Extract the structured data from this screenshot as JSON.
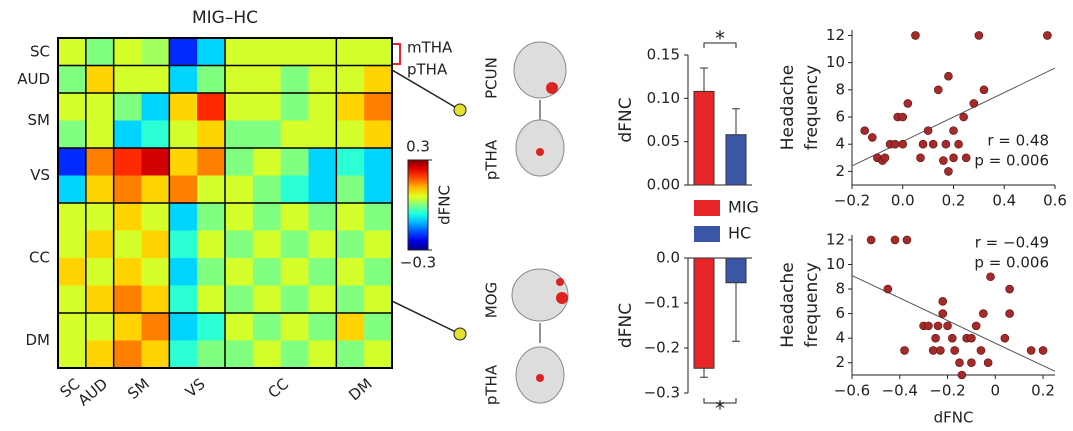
{
  "chart_data": [
    {
      "type": "heatmap",
      "title": "MIG–HC",
      "categories": [
        "SC",
        "AUD",
        "SM",
        null,
        "VS",
        null,
        "CC",
        null,
        null,
        null,
        "DM",
        null
      ],
      "values": [
        [
          0.05,
          0,
          0.05,
          0.02,
          -0.2,
          -0.1,
          0.05,
          0.05,
          0.05,
          0.05,
          0.05,
          0.05
        ],
        [
          0,
          0.1,
          0.05,
          0.05,
          -0.1,
          0,
          0.05,
          0.05,
          0,
          0.05,
          0.05,
          0.1
        ],
        [
          0.05,
          0.05,
          0,
          -0.1,
          0.1,
          0.2,
          0.05,
          0.05,
          0,
          0.05,
          0.1,
          0.15
        ],
        [
          0,
          0.05,
          -0.1,
          -0.05,
          0.05,
          0.1,
          0,
          0,
          0.05,
          0.05,
          0.05,
          0.1
        ],
        [
          -0.2,
          0.15,
          0.2,
          0.25,
          0.1,
          0.15,
          0,
          0.05,
          0,
          -0.1,
          -0.05,
          -0.1
        ],
        [
          -0.1,
          0.1,
          0.15,
          0.1,
          0.15,
          0.05,
          0.05,
          0,
          -0.05,
          -0.1,
          0,
          -0.1
        ],
        [
          0.05,
          0.05,
          0.1,
          0.05,
          -0.1,
          0,
          0.05,
          0,
          0.05,
          0,
          0.05,
          0
        ],
        [
          0.05,
          0.1,
          0.05,
          0.1,
          -0.05,
          0.05,
          0,
          0.05,
          0,
          0.05,
          0,
          0.05
        ],
        [
          0.1,
          0.05,
          0.1,
          0.05,
          -0.1,
          0,
          0.05,
          0,
          0.05,
          0,
          0.05,
          0
        ],
        [
          0.05,
          0.1,
          0.15,
          0.1,
          -0.05,
          0.05,
          0,
          0.05,
          0,
          0.05,
          0,
          0.05
        ],
        [
          0.05,
          0.05,
          0.1,
          0.15,
          -0.1,
          -0.05,
          0.05,
          0,
          0.05,
          0,
          0.1,
          0
        ],
        [
          0.05,
          0.1,
          0.15,
          0.1,
          -0.05,
          0,
          0,
          0.05,
          0,
          0.05,
          0,
          0.05
        ]
      ],
      "clim": [
        -0.3,
        0.3
      ],
      "cticks": [
        {
          "value": 0.3,
          "label": "0.3"
        },
        {
          "value": -0.3,
          "label": "−0.3"
        }
      ],
      "colorbar_label": "dFNC",
      "annotations": [
        "mTHA",
        "pTHA"
      ]
    },
    {
      "type": "bar",
      "ylabel": "dFNC",
      "significance": "*",
      "legend": true,
      "region_labels": [
        "PCUN",
        "pTHA"
      ],
      "series": [
        {
          "name": "MIG",
          "color": "#e8262a",
          "values": [
            0.108
          ],
          "errors": [
            0.027
          ]
        },
        {
          "name": "HC",
          "color": "#3b56a5",
          "values": [
            0.058
          ],
          "errors": [
            0.03
          ]
        }
      ],
      "ylim": [
        0,
        0.15
      ],
      "yticks": [
        {
          "value": 0,
          "label": "0.00"
        },
        {
          "value": 0.05,
          "label": "0.05"
        },
        {
          "value": 0.1,
          "label": "0.10"
        },
        {
          "value": 0.15,
          "label": "0.15"
        }
      ]
    },
    {
      "type": "bar",
      "ylabel": "dFNC",
      "significance": "*",
      "legend": false,
      "region_labels": [
        "MOG",
        "pTHA"
      ],
      "series": [
        {
          "color": "#e8262a",
          "values": [
            -0.245
          ],
          "errors": [
            0.02
          ]
        },
        {
          "color": "#3b56a5",
          "values": [
            -0.055
          ],
          "errors": [
            0.13
          ]
        }
      ],
      "ylim": [
        -0.3,
        0
      ],
      "yticks": [
        {
          "value": 0,
          "label": "0.0"
        },
        {
          "value": -0.1,
          "label": "−0.1"
        },
        {
          "value": -0.2,
          "label": "−0.2"
        },
        {
          "value": -0.3,
          "label": "−0.3"
        }
      ]
    },
    {
      "type": "scatter",
      "ylabel_lines": [
        "Headache",
        "frequency"
      ],
      "color": "#a52a2a",
      "x": [
        -0.15,
        -0.12,
        -0.1,
        -0.08,
        -0.07,
        -0.05,
        -0.03,
        -0.02,
        0,
        0,
        0.02,
        0.05,
        0.07,
        0.08,
        0.1,
        0.12,
        0.14,
        0.16,
        0.17,
        0.18,
        0.18,
        0.2,
        0.2,
        0.22,
        0.24,
        0.25,
        0.28,
        0.3,
        0.32,
        0.57
      ],
      "y": [
        5,
        4.5,
        3,
        2.8,
        3,
        4,
        4,
        6,
        6,
        4,
        7,
        12,
        3,
        4,
        5,
        4,
        8,
        2.8,
        4,
        9,
        2,
        3,
        5,
        4,
        6,
        3,
        7,
        12,
        8,
        12
      ],
      "fit": {
        "x": [
          -0.2,
          0.6
        ],
        "y": [
          2.4,
          9.6
        ]
      },
      "annotations": [
        "r = 0.48",
        "p = 0.006"
      ],
      "xlim": [
        -0.2,
        0.6
      ],
      "xticks": [
        {
          "value": -0.2,
          "label": "−0.2"
        },
        {
          "value": 0,
          "label": "0.0"
        },
        {
          "value": 0.2,
          "label": "0.2"
        },
        {
          "value": 0.4,
          "label": "0.4"
        },
        {
          "value": 0.6,
          "label": "0.6"
        }
      ],
      "ylim": [
        1,
        12.4
      ],
      "yticks": [
        2,
        4,
        6,
        8,
        10,
        12
      ]
    },
    {
      "type": "scatter",
      "ylabel_lines": [
        "Headache",
        "frequency"
      ],
      "xlabel": "dFNC",
      "color": "#a52a2a",
      "x": [
        -0.52,
        -0.45,
        -0.42,
        -0.38,
        -0.37,
        -0.3,
        -0.28,
        -0.26,
        -0.25,
        -0.24,
        -0.23,
        -0.22,
        -0.22,
        -0.2,
        -0.18,
        -0.17,
        -0.15,
        -0.14,
        -0.12,
        -0.1,
        -0.1,
        -0.08,
        -0.06,
        -0.05,
        -0.03,
        -0.02,
        0.04,
        0.06,
        0.06,
        0.15,
        0.2
      ],
      "y": [
        12,
        8,
        12,
        3,
        12,
        5,
        5,
        3,
        4,
        5,
        3,
        7,
        6,
        5,
        4,
        3,
        2,
        1,
        4,
        4,
        2,
        5,
        3,
        6,
        2,
        9,
        4,
        8,
        6,
        3,
        3
      ],
      "fit": {
        "x": [
          -0.6,
          0.25
        ],
        "y": [
          9.1,
          1.3
        ]
      },
      "annotations": [
        "r = −0.49",
        "p = 0.006"
      ],
      "xlim": [
        -0.6,
        0.25
      ],
      "xticks": [
        {
          "value": -0.6,
          "label": "−0.6"
        },
        {
          "value": -0.4,
          "label": "−0.4"
        },
        {
          "value": -0.2,
          "label": "−0.2"
        },
        0,
        0.2
      ],
      "ylim": [
        1,
        12.4
      ],
      "yticks": [
        2,
        4,
        6,
        8,
        10,
        12
      ]
    }
  ]
}
